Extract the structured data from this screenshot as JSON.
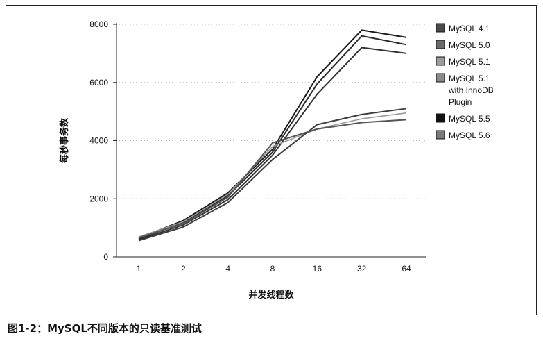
{
  "caption": "图1-2：MySQL不同版本的只读基准测试",
  "chart_data": {
    "type": "line",
    "title": "",
    "xlabel": "并发线程数",
    "ylabel": "每秒事务数",
    "categories": [
      "1",
      "2",
      "4",
      "8",
      "16",
      "32",
      "64"
    ],
    "ylim": [
      0,
      8000
    ],
    "yticks": [
      0,
      2000,
      4000,
      6000,
      8000
    ],
    "grid": "horizontal-dotted",
    "legend_position": "right",
    "series": [
      {
        "name": "MySQL 4.1",
        "color": "#1a1a1a",
        "values": [
          650,
          1250,
          2200,
          3700,
          6200,
          7800,
          7550
        ]
      },
      {
        "name": "MySQL 5.0",
        "color": "#2a2a2a",
        "values": [
          620,
          1180,
          2100,
          3600,
          5950,
          7600,
          7300
        ]
      },
      {
        "name": "MySQL 5.1",
        "color": "#333333",
        "values": [
          590,
          1100,
          1970,
          3500,
          5600,
          7200,
          7000
        ]
      },
      {
        "name": "MySQL 5.1 with InnoDB Plugin",
        "color": "#9a9a9a",
        "values": [
          690,
          1210,
          2150,
          3800,
          4400,
          4750,
          4950
        ]
      },
      {
        "name": "MySQL 5.5",
        "color": "#3c3c3c",
        "values": [
          560,
          1030,
          1870,
          3350,
          4550,
          4900,
          5100
        ]
      },
      {
        "name": "MySQL 5.6",
        "color": "#555555",
        "values": [
          660,
          1150,
          2050,
          3920,
          4400,
          4620,
          4720
        ]
      }
    ]
  }
}
